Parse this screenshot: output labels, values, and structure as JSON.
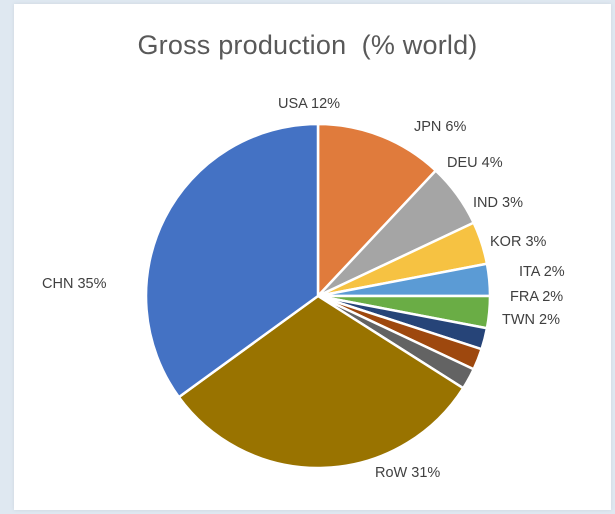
{
  "chart_data": {
    "type": "pie",
    "title": "Gross production  (% world)",
    "slices": [
      {
        "label": "USA",
        "value": 12,
        "display": "USA 12%",
        "color": "#e07b3c"
      },
      {
        "label": "JPN",
        "value": 6,
        "display": "JPN 6%",
        "color": "#a5a5a5"
      },
      {
        "label": "DEU",
        "value": 4,
        "display": "DEU 4%",
        "color": "#f6c242"
      },
      {
        "label": "IND",
        "value": 3,
        "display": "IND 3%",
        "color": "#5b9bd5"
      },
      {
        "label": "KOR",
        "value": 3,
        "display": "KOR 3%",
        "color": "#6aad45"
      },
      {
        "label": "ITA",
        "value": 2,
        "display": "ITA 2%",
        "color": "#264478"
      },
      {
        "label": "FRA",
        "value": 2,
        "display": "FRA 2%",
        "color": "#9e480e"
      },
      {
        "label": "TWN",
        "value": 2,
        "display": "TWN 2%",
        "color": "#636363"
      },
      {
        "label": "RoW",
        "value": 31,
        "display": "RoW 31%",
        "color": "#997300"
      },
      {
        "label": "CHN",
        "value": 35,
        "display": "CHN 35%",
        "color": "#4472c4"
      }
    ],
    "start_direction": "12 o'clock",
    "order": "clockwise",
    "legend": "none (category labels beside slices)"
  }
}
